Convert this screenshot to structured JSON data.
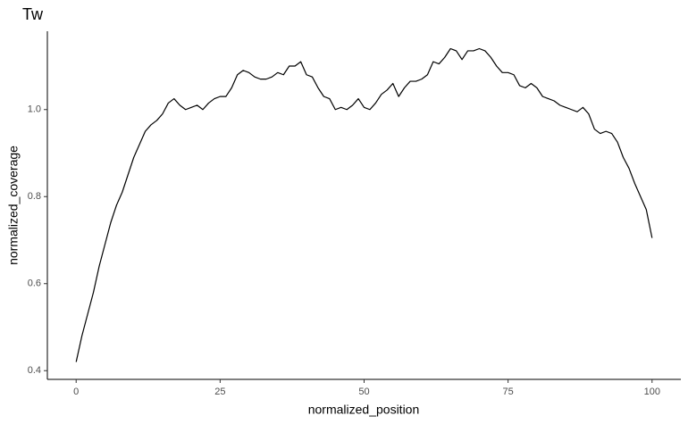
{
  "chart_data": {
    "type": "line",
    "title": "Tw",
    "x_label": "normalized_position",
    "y_label": "normalized_coverage",
    "x": [
      0,
      1,
      2,
      3,
      4,
      5,
      6,
      7,
      8,
      9,
      10,
      11,
      12,
      13,
      14,
      15,
      16,
      17,
      18,
      19,
      20,
      21,
      22,
      23,
      24,
      25,
      26,
      27,
      28,
      29,
      30,
      31,
      32,
      33,
      34,
      35,
      36,
      37,
      38,
      39,
      40,
      41,
      42,
      43,
      44,
      45,
      46,
      47,
      48,
      49,
      50,
      51,
      52,
      53,
      54,
      55,
      56,
      57,
      58,
      59,
      60,
      61,
      62,
      63,
      64,
      65,
      66,
      67,
      68,
      69,
      70,
      71,
      72,
      73,
      74,
      75,
      76,
      77,
      78,
      79,
      80,
      81,
      82,
      83,
      84,
      85,
      86,
      87,
      88,
      89,
      90,
      91,
      92,
      93,
      94,
      95,
      96,
      97,
      98,
      99,
      100
    ],
    "values": [
      0.42,
      0.48,
      0.53,
      0.58,
      0.64,
      0.69,
      0.74,
      0.78,
      0.81,
      0.85,
      0.89,
      0.92,
      0.95,
      0.965,
      0.975,
      0.99,
      1.015,
      1.025,
      1.01,
      1.0,
      1.005,
      1.01,
      1.0,
      1.015,
      1.025,
      1.03,
      1.03,
      1.05,
      1.08,
      1.09,
      1.085,
      1.075,
      1.07,
      1.07,
      1.075,
      1.085,
      1.08,
      1.1,
      1.1,
      1.11,
      1.08,
      1.075,
      1.05,
      1.03,
      1.025,
      1.0,
      1.005,
      1.0,
      1.01,
      1.025,
      1.005,
      1.0,
      1.015,
      1.035,
      1.045,
      1.06,
      1.03,
      1.05,
      1.065,
      1.065,
      1.07,
      1.08,
      1.11,
      1.105,
      1.12,
      1.14,
      1.135,
      1.115,
      1.135,
      1.135,
      1.14,
      1.135,
      1.12,
      1.1,
      1.085,
      1.085,
      1.08,
      1.055,
      1.05,
      1.06,
      1.05,
      1.03,
      1.025,
      1.02,
      1.01,
      1.005,
      1.0,
      0.995,
      1.005,
      0.99,
      0.955,
      0.945,
      0.95,
      0.945,
      0.925,
      0.89,
      0.865,
      0.83,
      0.8,
      0.77,
      0.705
    ],
    "color": "#000000",
    "xlim": [
      -5,
      105
    ],
    "xticks": [
      0,
      25,
      50,
      75,
      100
    ],
    "ylim": [
      0.38,
      1.18
    ],
    "yticks": [
      0.4,
      0.6,
      0.8,
      {
        "value": 1,
        "label": "1.0"
      }
    ],
    "grid": false
  }
}
